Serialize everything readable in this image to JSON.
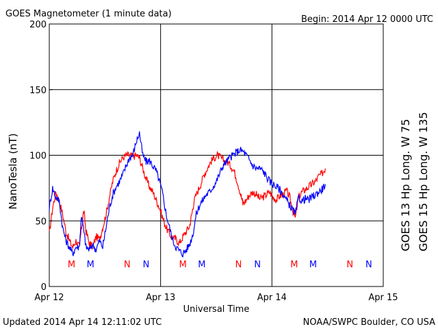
{
  "header": {
    "title": "GOES Magnetometer (1 minute data)",
    "begin": "Begin:  2014 Apr 12 0000 UTC"
  },
  "footer": {
    "updated": "Updated 2014 Apr 14 12:11:02 UTC",
    "credit": "NOAA/SWPC Boulder, CO USA"
  },
  "colors": {
    "goes13": "#ff0000",
    "goes15": "#0000ff",
    "grid": "#000000"
  },
  "chart_data": {
    "type": "line",
    "title": "GOES Magnetometer (1 minute data)",
    "xlabel": "Universal Time",
    "ylabel": "NanoTesla (nT)",
    "ylim": [
      0,
      200
    ],
    "xlim_days": [
      0,
      3
    ],
    "yticks": [
      0,
      50,
      100,
      150,
      200
    ],
    "xticks": [
      {
        "day": 0,
        "label": "Apr 12"
      },
      {
        "day": 1,
        "label": "Apr 13"
      },
      {
        "day": 2,
        "label": "Apr 14"
      },
      {
        "day": 3,
        "label": "Apr 15"
      }
    ],
    "grid": true,
    "series": [
      {
        "name": "GOES 13 Hp  Long. W 75",
        "color": "#ff0000",
        "points": [
          [
            0.0,
            40
          ],
          [
            0.03,
            60
          ],
          [
            0.06,
            72
          ],
          [
            0.09,
            65
          ],
          [
            0.12,
            55
          ],
          [
            0.15,
            42
          ],
          [
            0.18,
            35
          ],
          [
            0.21,
            30
          ],
          [
            0.24,
            35
          ],
          [
            0.27,
            30
          ],
          [
            0.29,
            45
          ],
          [
            0.31,
            58
          ],
          [
            0.33,
            42
          ],
          [
            0.36,
            33
          ],
          [
            0.39,
            30
          ],
          [
            0.42,
            38
          ],
          [
            0.45,
            36
          ],
          [
            0.48,
            45
          ],
          [
            0.51,
            55
          ],
          [
            0.54,
            68
          ],
          [
            0.57,
            80
          ],
          [
            0.6,
            88
          ],
          [
            0.63,
            94
          ],
          [
            0.66,
            98
          ],
          [
            0.69,
            100
          ],
          [
            0.72,
            100
          ],
          [
            0.75,
            99
          ],
          [
            0.78,
            100
          ],
          [
            0.81,
            98
          ],
          [
            0.84,
            90
          ],
          [
            0.87,
            82
          ],
          [
            0.9,
            76
          ],
          [
            0.93,
            72
          ],
          [
            0.96,
            66
          ],
          [
            0.99,
            60
          ],
          [
            1.02,
            52
          ],
          [
            1.05,
            45
          ],
          [
            1.08,
            40
          ],
          [
            1.11,
            37
          ],
          [
            1.14,
            36
          ],
          [
            1.17,
            33
          ],
          [
            1.2,
            38
          ],
          [
            1.23,
            42
          ],
          [
            1.26,
            46
          ],
          [
            1.28,
            55
          ],
          [
            1.3,
            65
          ],
          [
            1.33,
            72
          ],
          [
            1.36,
            78
          ],
          [
            1.39,
            85
          ],
          [
            1.42,
            90
          ],
          [
            1.45,
            95
          ],
          [
            1.48,
            98
          ],
          [
            1.51,
            100
          ],
          [
            1.54,
            98
          ],
          [
            1.57,
            96
          ],
          [
            1.6,
            95
          ],
          [
            1.63,
            92
          ],
          [
            1.66,
            88
          ],
          [
            1.69,
            80
          ],
          [
            1.72,
            70
          ],
          [
            1.74,
            63
          ],
          [
            1.77,
            66
          ],
          [
            1.8,
            70
          ],
          [
            1.83,
            72
          ],
          [
            1.86,
            70
          ],
          [
            1.89,
            67
          ],
          [
            1.92,
            68
          ],
          [
            1.95,
            70
          ],
          [
            1.98,
            72
          ],
          [
            2.01,
            68
          ],
          [
            2.04,
            66
          ],
          [
            2.07,
            69
          ],
          [
            2.1,
            70
          ],
          [
            2.13,
            73
          ],
          [
            2.16,
            68
          ],
          [
            2.18,
            60
          ],
          [
            2.21,
            52
          ],
          [
            2.24,
            68
          ],
          [
            2.27,
            72
          ],
          [
            2.3,
            74
          ],
          [
            2.33,
            76
          ],
          [
            2.36,
            78
          ],
          [
            2.39,
            80
          ],
          [
            2.42,
            84
          ],
          [
            2.45,
            86
          ],
          [
            2.48,
            90
          ]
        ]
      },
      {
        "name": "GOES 15 Hp  Long. W 135",
        "color": "#0000ff",
        "points": [
          [
            0.0,
            60
          ],
          [
            0.03,
            75
          ],
          [
            0.06,
            68
          ],
          [
            0.09,
            65
          ],
          [
            0.12,
            45
          ],
          [
            0.15,
            35
          ],
          [
            0.18,
            30
          ],
          [
            0.21,
            25
          ],
          [
            0.24,
            30
          ],
          [
            0.27,
            30
          ],
          [
            0.29,
            55
          ],
          [
            0.31,
            42
          ],
          [
            0.33,
            30
          ],
          [
            0.36,
            28
          ],
          [
            0.39,
            32
          ],
          [
            0.42,
            28
          ],
          [
            0.45,
            35
          ],
          [
            0.48,
            30
          ],
          [
            0.51,
            45
          ],
          [
            0.54,
            60
          ],
          [
            0.57,
            70
          ],
          [
            0.6,
            76
          ],
          [
            0.63,
            80
          ],
          [
            0.66,
            85
          ],
          [
            0.69,
            92
          ],
          [
            0.72,
            98
          ],
          [
            0.75,
            100
          ],
          [
            0.78,
            110
          ],
          [
            0.81,
            117
          ],
          [
            0.84,
            100
          ],
          [
            0.87,
            95
          ],
          [
            0.9,
            96
          ],
          [
            0.93,
            92
          ],
          [
            0.96,
            88
          ],
          [
            0.99,
            80
          ],
          [
            1.02,
            70
          ],
          [
            1.05,
            55
          ],
          [
            1.08,
            45
          ],
          [
            1.11,
            35
          ],
          [
            1.14,
            30
          ],
          [
            1.17,
            27
          ],
          [
            1.2,
            25
          ],
          [
            1.23,
            28
          ],
          [
            1.26,
            32
          ],
          [
            1.29,
            40
          ],
          [
            1.32,
            55
          ],
          [
            1.35,
            62
          ],
          [
            1.38,
            66
          ],
          [
            1.41,
            70
          ],
          [
            1.44,
            72
          ],
          [
            1.47,
            76
          ],
          [
            1.5,
            80
          ],
          [
            1.53,
            86
          ],
          [
            1.56,
            92
          ],
          [
            1.59,
            95
          ],
          [
            1.62,
            98
          ],
          [
            1.65,
            100
          ],
          [
            1.68,
            102
          ],
          [
            1.71,
            104
          ],
          [
            1.74,
            103
          ],
          [
            1.77,
            100
          ],
          [
            1.8,
            96
          ],
          [
            1.83,
            92
          ],
          [
            1.86,
            90
          ],
          [
            1.89,
            90
          ],
          [
            1.92,
            88
          ],
          [
            1.95,
            84
          ],
          [
            1.98,
            80
          ],
          [
            2.01,
            78
          ],
          [
            2.04,
            76
          ],
          [
            2.07,
            74
          ],
          [
            2.1,
            70
          ],
          [
            2.13,
            66
          ],
          [
            2.16,
            62
          ],
          [
            2.19,
            58
          ],
          [
            2.21,
            55
          ],
          [
            2.24,
            68
          ],
          [
            2.27,
            65
          ],
          [
            2.3,
            67
          ],
          [
            2.33,
            66
          ],
          [
            2.36,
            68
          ],
          [
            2.39,
            70
          ],
          [
            2.42,
            72
          ],
          [
            2.45,
            74
          ],
          [
            2.48,
            78
          ]
        ]
      }
    ],
    "annotations": [
      {
        "day": 0.2,
        "label": "M",
        "series": "GOES 13"
      },
      {
        "day": 0.37,
        "label": "M",
        "series": "GOES 15"
      },
      {
        "day": 0.7,
        "label": "N",
        "series": "GOES 13"
      },
      {
        "day": 0.87,
        "label": "N",
        "series": "GOES 15"
      },
      {
        "day": 1.2,
        "label": "M",
        "series": "GOES 13"
      },
      {
        "day": 1.37,
        "label": "M",
        "series": "GOES 15"
      },
      {
        "day": 1.7,
        "label": "N",
        "series": "GOES 13"
      },
      {
        "day": 1.87,
        "label": "N",
        "series": "GOES 15"
      },
      {
        "day": 2.2,
        "label": "M",
        "series": "GOES 13"
      },
      {
        "day": 2.37,
        "label": "M",
        "series": "GOES 15"
      },
      {
        "day": 2.7,
        "label": "N",
        "series": "GOES 13"
      },
      {
        "day": 2.87,
        "label": "N",
        "series": "GOES 15"
      }
    ]
  }
}
